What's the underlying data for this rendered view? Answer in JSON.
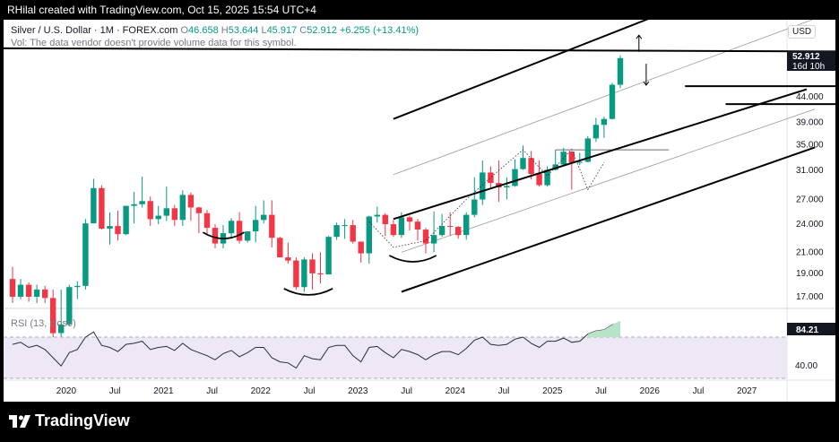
{
  "header": {
    "creator": "RHilal created with TradingView.com, Oct 15, 2025 15:54 UTC+4"
  },
  "legend": {
    "symbol": "Silver / U.S. Dollar · 1M · FOREX.com",
    "o_label": "O",
    "o_value": "46.658",
    "h_label": "H",
    "h_value": "53.644",
    "l_label": "L",
    "l_value": "45.917",
    "c_label": "C",
    "c_value": "52.912",
    "change": "+6.255 (+13.41%)"
  },
  "volume_note": "Vol: The data vendor doesn't provide volume data for this symbol.",
  "currency": "USD",
  "price_tag": {
    "price": "52.912",
    "countdown": "16d 10h"
  },
  "rsi": {
    "title": "RSI (13, close)",
    "value": "84.21"
  },
  "footer": {
    "brand": "TradingView"
  },
  "colors": {
    "up": "#089981",
    "down": "#f23645",
    "rsi_line": "#2a2e39",
    "rsi_band": "#ede7f6"
  },
  "chart_data": {
    "type": "candlestick",
    "title": "Silver / U.S. Dollar · 1M · FOREX.com",
    "price_axis_ticks": [
      "44.000",
      "39.000",
      "35.000",
      "31.000",
      "27.000",
      "24.000",
      "21.000",
      "19.000",
      "17.000"
    ],
    "time_axis_ticks": [
      "2020",
      "Jul",
      "2021",
      "Jul",
      "2022",
      "Jul",
      "2023",
      "Jul",
      "2024",
      "Jul",
      "2025",
      "Jul",
      "2026",
      "Jul",
      "2027"
    ],
    "ohlc": [
      [
        18.5,
        19.6,
        16.5,
        17.0
      ],
      [
        17.0,
        18.5,
        16.8,
        18.0
      ],
      [
        18.0,
        18.2,
        16.6,
        17.0
      ],
      [
        17.0,
        18.0,
        16.5,
        17.6
      ],
      [
        17.6,
        17.9,
        16.5,
        16.9
      ],
      [
        16.9,
        17.6,
        14.0,
        14.3
      ],
      [
        14.3,
        17.6,
        14.0,
        14.9
      ],
      [
        14.9,
        18.0,
        14.8,
        17.8
      ],
      [
        17.8,
        18.3,
        16.8,
        17.9
      ],
      [
        17.9,
        24.6,
        17.6,
        24.1
      ],
      [
        24.1,
        29.8,
        24.1,
        28.5
      ],
      [
        28.5,
        28.9,
        23.4,
        23.5
      ],
      [
        23.5,
        25.4,
        21.8,
        23.8
      ],
      [
        23.8,
        25.6,
        22.2,
        22.9
      ],
      [
        22.9,
        26.2,
        22.8,
        26.2
      ],
      [
        26.2,
        28.0,
        24.1,
        26.4
      ],
      [
        26.4,
        30.1,
        26.0,
        26.8
      ],
      [
        26.8,
        27.4,
        23.8,
        24.6
      ],
      [
        24.6,
        26.2,
        24.0,
        25.0
      ],
      [
        25.0,
        28.7,
        24.4,
        25.9
      ],
      [
        25.9,
        26.3,
        23.8,
        24.5
      ],
      [
        24.5,
        28.2,
        23.8,
        27.6
      ],
      [
        27.6,
        27.9,
        24.4,
        26.0
      ],
      [
        26.0,
        26.1,
        23.0,
        25.3
      ],
      [
        25.3,
        25.7,
        22.8,
        23.6
      ],
      [
        23.6,
        24.0,
        21.4,
        21.9
      ],
      [
        21.9,
        23.9,
        21.4,
        23.0
      ],
      [
        23.0,
        24.7,
        22.4,
        24.4
      ],
      [
        24.4,
        25.4,
        21.9,
        22.2
      ],
      [
        22.2,
        23.2,
        22.0,
        23.2
      ],
      [
        23.2,
        26.2,
        22.0,
        24.5
      ],
      [
        24.5,
        26.9,
        24.1,
        25.1
      ],
      [
        25.1,
        26.9,
        21.5,
        22.5
      ],
      [
        22.5,
        22.6,
        20.5,
        20.5
      ],
      [
        20.5,
        22.0,
        19.9,
        20.2
      ],
      [
        20.2,
        20.5,
        17.6,
        17.8
      ],
      [
        17.8,
        20.5,
        17.4,
        20.3
      ],
      [
        20.3,
        20.9,
        17.6,
        19.0
      ],
      [
        19.0,
        21.0,
        18.1,
        18.9
      ],
      [
        18.9,
        22.7,
        18.9,
        22.6
      ],
      [
        22.6,
        24.2,
        22.3,
        23.9
      ],
      [
        23.9,
        24.6,
        22.4,
        23.9
      ],
      [
        23.9,
        24.5,
        21.9,
        22.1
      ],
      [
        22.1,
        22.1,
        20.0,
        20.9
      ],
      [
        20.9,
        25.0,
        19.9,
        24.9
      ],
      [
        24.9,
        26.1,
        24.2,
        25.1
      ],
      [
        25.1,
        25.3,
        22.7,
        24.0
      ],
      [
        24.0,
        24.5,
        22.6,
        22.8
      ],
      [
        22.8,
        25.4,
        22.5,
        24.8
      ],
      [
        24.8,
        25.0,
        23.3,
        24.3
      ],
      [
        24.3,
        24.6,
        22.2,
        23.4
      ],
      [
        23.4,
        23.6,
        20.9,
        21.9
      ],
      [
        21.9,
        25.5,
        21.0,
        22.8
      ],
      [
        22.8,
        25.2,
        22.6,
        23.8
      ],
      [
        23.8,
        25.4,
        22.7,
        23.7
      ],
      [
        23.7,
        23.8,
        22.4,
        22.8
      ],
      [
        22.8,
        25.4,
        22.3,
        25.1
      ],
      [
        25.1,
        30.0,
        24.8,
        27.0
      ],
      [
        27.0,
        32.5,
        26.3,
        30.7
      ],
      [
        30.7,
        31.6,
        28.6,
        29.2
      ],
      [
        29.2,
        32.5,
        26.7,
        28.6
      ],
      [
        28.6,
        30.0,
        27.0,
        28.8
      ],
      [
        28.8,
        32.7,
        28.7,
        31.2
      ],
      [
        31.2,
        34.9,
        31.1,
        32.9
      ],
      [
        32.9,
        34.0,
        29.7,
        30.5
      ],
      [
        30.5,
        32.5,
        28.7,
        28.9
      ],
      [
        28.9,
        31.6,
        28.7,
        31.1
      ],
      [
        31.1,
        34.2,
        31.0,
        31.9
      ],
      [
        31.9,
        34.5,
        31.6,
        33.9
      ],
      [
        33.9,
        34.0,
        28.3,
        32.2
      ],
      [
        32.2,
        33.7,
        31.8,
        32.3
      ],
      [
        32.3,
        36.5,
        32.2,
        36.1
      ],
      [
        36.1,
        39.8,
        35.5,
        38.5
      ],
      [
        38.5,
        40.0,
        36.2,
        39.6
      ],
      [
        39.6,
        47.0,
        39.5,
        46.6
      ],
      [
        46.6,
        53.6,
        45.9,
        52.9
      ]
    ],
    "overlay_lines": [
      {
        "t0": -8,
        "p0": 55.5,
        "t1": 126,
        "p1": 54.4
      },
      {
        "t0": 47,
        "p0": 39.6,
        "t1": 99,
        "p1": 87.0
      },
      {
        "t0": 47,
        "p0": 24.6,
        "t1": 98,
        "p1": 45.6
      },
      {
        "t0": 48,
        "p0": 17.4,
        "t1": 99,
        "p1": 34.6
      },
      {
        "t0": 83,
        "p0": 46.3,
        "t1": 110,
        "p1": 46.3
      },
      {
        "t0": 88,
        "p0": 42.5,
        "t1": 104,
        "p1": 42.5
      }
    ]
  }
}
